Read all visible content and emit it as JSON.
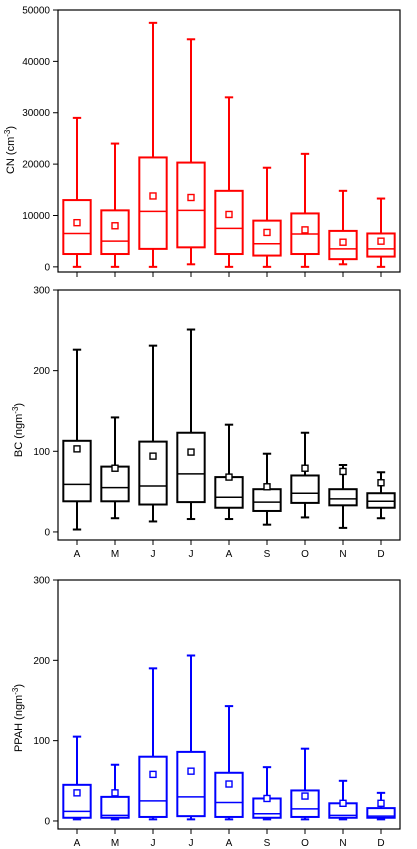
{
  "chart_data": [
    {
      "type": "box",
      "ylabel": "CN (cm",
      "ylabel_sup": "-3",
      "ylabel_close": ")",
      "color": "#ff0000",
      "categories": [
        "A",
        "M",
        "J",
        "J",
        "A",
        "S",
        "O",
        "N",
        "D"
      ],
      "category_labels_visible": false,
      "ylim": [
        -1000,
        50000
      ],
      "yticks": [
        0,
        10000,
        20000,
        30000,
        40000,
        50000
      ],
      "boxes": [
        {
          "min": 0,
          "q1": 2500,
          "median": 6500,
          "q3": 13000,
          "max": 29000,
          "mean": 8600
        },
        {
          "min": 0,
          "q1": 2500,
          "median": 5000,
          "q3": 11000,
          "max": 24000,
          "mean": 8000
        },
        {
          "min": 0,
          "q1": 3500,
          "median": 10800,
          "q3": 21300,
          "max": 47500,
          "mean": 13800
        },
        {
          "min": 500,
          "q1": 3800,
          "median": 11000,
          "q3": 20300,
          "max": 44300,
          "mean": 13500
        },
        {
          "min": 0,
          "q1": 2500,
          "median": 7500,
          "q3": 14800,
          "max": 33000,
          "mean": 10200
        },
        {
          "min": 0,
          "q1": 2200,
          "median": 4500,
          "q3": 9000,
          "max": 19300,
          "mean": 6700
        },
        {
          "min": 0,
          "q1": 2500,
          "median": 6400,
          "q3": 10400,
          "max": 22000,
          "mean": 7200
        },
        {
          "min": 500,
          "q1": 1500,
          "median": 3500,
          "q3": 7000,
          "max": 14800,
          "mean": 4800
        },
        {
          "min": 0,
          "q1": 2000,
          "median": 3500,
          "q3": 6500,
          "max": 13300,
          "mean": 5000
        }
      ]
    },
    {
      "type": "box",
      "ylabel": "BC (ngm",
      "ylabel_sup": "-3",
      "ylabel_close": ")",
      "color": "#000000",
      "categories": [
        "A",
        "M",
        "J",
        "J",
        "A",
        "S",
        "O",
        "N",
        "D"
      ],
      "category_labels_visible": true,
      "ylim": [
        -10,
        300
      ],
      "yticks": [
        0,
        100,
        200,
        300
      ],
      "boxes": [
        {
          "min": 3,
          "q1": 38,
          "median": 59,
          "q3": 113,
          "max": 226,
          "mean": 103
        },
        {
          "min": 17,
          "q1": 38,
          "median": 55,
          "q3": 81,
          "max": 142,
          "mean": 79
        },
        {
          "min": 13,
          "q1": 34,
          "median": 57,
          "q3": 112,
          "max": 231,
          "mean": 94
        },
        {
          "min": 16,
          "q1": 37,
          "median": 72,
          "q3": 123,
          "max": 251,
          "mean": 99
        },
        {
          "min": 16,
          "q1": 30,
          "median": 43,
          "q3": 68,
          "max": 133,
          "mean": 68
        },
        {
          "min": 9,
          "q1": 26,
          "median": 37,
          "q3": 53,
          "max": 97,
          "mean": 56
        },
        {
          "min": 18,
          "q1": 36,
          "median": 48,
          "q3": 70,
          "max": 123,
          "mean": 79
        },
        {
          "min": 5,
          "q1": 33,
          "median": 41,
          "q3": 53,
          "max": 83,
          "mean": 75
        },
        {
          "min": 17,
          "q1": 30,
          "median": 38,
          "q3": 48,
          "max": 74,
          "mean": 61
        }
      ]
    },
    {
      "type": "box",
      "ylabel": "PPAH (ngm",
      "ylabel_sup": "-3",
      "ylabel_close": ")",
      "color": "#0000ff",
      "categories": [
        "A",
        "M",
        "J",
        "J",
        "A",
        "S",
        "O",
        "N",
        "D"
      ],
      "category_labels_visible": true,
      "ylim": [
        -10,
        300
      ],
      "yticks": [
        0,
        100,
        200,
        300
      ],
      "boxes": [
        {
          "min": 2,
          "q1": 4,
          "median": 12,
          "q3": 45,
          "max": 105,
          "mean": 35
        },
        {
          "min": 2,
          "q1": 4,
          "median": 7,
          "q3": 30,
          "max": 70,
          "mean": 35
        },
        {
          "min": 2,
          "q1": 5,
          "median": 25,
          "q3": 80,
          "max": 190,
          "mean": 58
        },
        {
          "min": 2,
          "q1": 6,
          "median": 30,
          "q3": 86,
          "max": 206,
          "mean": 62
        },
        {
          "min": 2,
          "q1": 5,
          "median": 23,
          "q3": 60,
          "max": 143,
          "mean": 46
        },
        {
          "min": 2,
          "q1": 4,
          "median": 9,
          "q3": 28,
          "max": 67,
          "mean": 28
        },
        {
          "min": 2,
          "q1": 5,
          "median": 15,
          "q3": 38,
          "max": 90,
          "mean": 31
        },
        {
          "min": 2,
          "q1": 4,
          "median": 7,
          "q3": 22,
          "max": 50,
          "mean": 22
        },
        {
          "min": 2,
          "q1": 4,
          "median": 6,
          "q3": 16,
          "max": 35,
          "mean": 22
        }
      ]
    }
  ]
}
